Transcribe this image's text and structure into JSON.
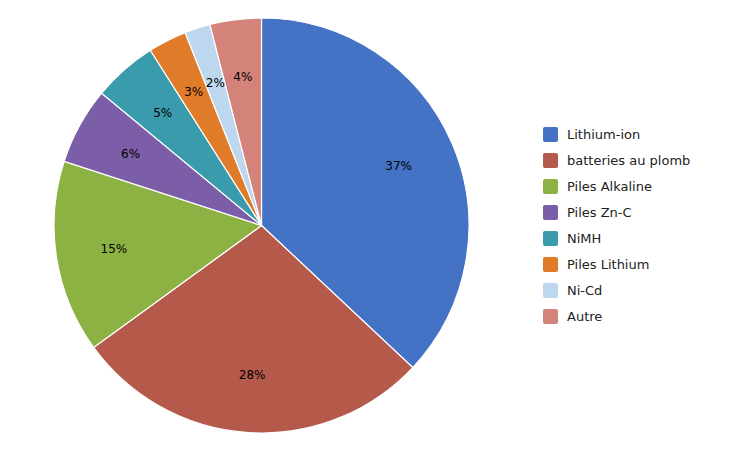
{
  "chart_data": {
    "type": "pie",
    "categories": [
      "Lithium-ion",
      "batteries au plomb",
      "Piles Alkaline",
      "Piles Zn-C",
      "NiMH",
      "Piles Lithium",
      "Ni-Cd",
      "Autre"
    ],
    "values": [
      37,
      28,
      15,
      6,
      5,
      3,
      2,
      4
    ],
    "value_labels": [
      "37%",
      "28%",
      "15%",
      "6%",
      "5%",
      "3%",
      "2%",
      "4%"
    ],
    "colors": [
      "#4472C4",
      "#B55A4A",
      "#8DB244",
      "#7B5EA7",
      "#3A9BAD",
      "#E07B2A",
      "#BDD7EE",
      "#D4837A"
    ],
    "data_labels": true,
    "legend": "right"
  }
}
